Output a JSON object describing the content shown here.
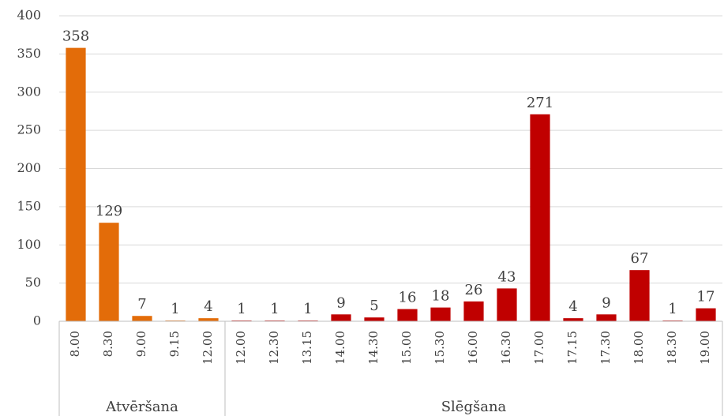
{
  "chart_data": {
    "type": "bar",
    "ylim": [
      0,
      400
    ],
    "yticks": [
      0,
      50,
      100,
      150,
      200,
      250,
      300,
      350,
      400
    ],
    "grid": true,
    "groups": [
      {
        "name": "Atvēršana",
        "color": "#e36c09",
        "categories": [
          "8.00",
          "8.30",
          "9.00",
          "9.15",
          "12.00"
        ],
        "values": [
          358,
          129,
          7,
          1,
          4
        ]
      },
      {
        "name": "Slēgšana",
        "color": "#c00000",
        "categories": [
          "12.00",
          "12.30",
          "13.15",
          "14.00",
          "14.30",
          "15.00",
          "15.30",
          "16.00",
          "16.30",
          "17.00",
          "17.15",
          "17.30",
          "18.00",
          "18.30",
          "19.00"
        ],
        "values": [
          1,
          1,
          1,
          9,
          5,
          16,
          18,
          26,
          43,
          271,
          4,
          9,
          67,
          1,
          17
        ]
      }
    ]
  }
}
